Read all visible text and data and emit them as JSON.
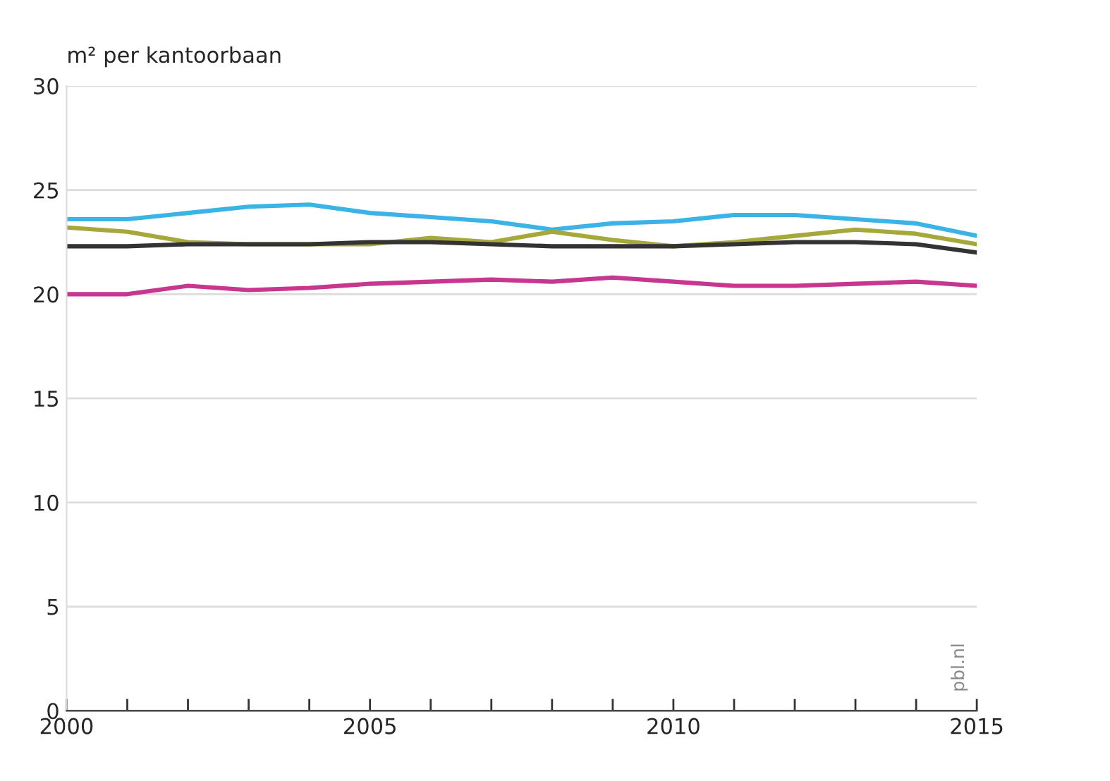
{
  "chart_data": {
    "type": "line",
    "ylabel": "m² per kantoorbaan",
    "x": [
      2000,
      2001,
      2002,
      2003,
      2004,
      2005,
      2006,
      2007,
      2008,
      2009,
      2010,
      2011,
      2012,
      2013,
      2014,
      2015
    ],
    "series": [
      {
        "color": "#3bb4e5",
        "values": [
          23.6,
          23.6,
          23.9,
          24.2,
          24.3,
          23.9,
          23.7,
          23.5,
          23.1,
          23.4,
          23.5,
          23.8,
          23.8,
          23.6,
          23.4,
          22.8
        ]
      },
      {
        "color": "#a6a83c",
        "values": [
          23.2,
          23.0,
          22.5,
          22.4,
          22.4,
          22.4,
          22.7,
          22.5,
          23.0,
          22.6,
          22.3,
          22.5,
          22.8,
          23.1,
          22.9,
          22.4
        ]
      },
      {
        "color": "#c8378f",
        "values": [
          20.0,
          20.0,
          20.4,
          20.2,
          20.3,
          20.5,
          20.6,
          20.7,
          20.6,
          20.8,
          20.6,
          20.4,
          20.4,
          20.5,
          20.6,
          20.4
        ]
      },
      {
        "color": "#333333",
        "values": [
          22.3,
          22.3,
          22.4,
          22.4,
          22.4,
          22.5,
          22.5,
          22.4,
          22.3,
          22.3,
          22.3,
          22.4,
          22.5,
          22.5,
          22.4,
          22.0
        ]
      }
    ],
    "xlim": [
      2000,
      2015
    ],
    "xticks": [
      2000,
      {
        "value": 2001,
        "label": null
      },
      {
        "value": 2002,
        "label": null
      },
      {
        "value": 2003,
        "label": null
      },
      {
        "value": 2004,
        "label": null
      },
      2005,
      {
        "value": 2006,
        "label": null
      },
      {
        "value": 2007,
        "label": null
      },
      {
        "value": 2008,
        "label": null
      },
      {
        "value": 2009,
        "label": null
      },
      2010,
      {
        "value": 2011,
        "label": null
      },
      {
        "value": 2012,
        "label": null
      },
      {
        "value": 2013,
        "label": null
      },
      {
        "value": 2014,
        "label": null
      },
      2015
    ],
    "ylim": [
      0,
      30
    ],
    "yticks": [
      0,
      5,
      10,
      15,
      20,
      25,
      30
    ],
    "grid": "y",
    "line_style": "solid",
    "marker": "none",
    "annotations": [
      "pbl.nl"
    ]
  }
}
